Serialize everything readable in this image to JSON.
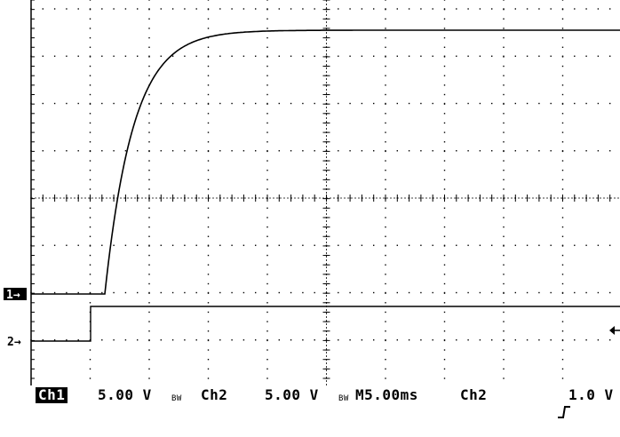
{
  "channels": [
    {
      "marker": "1→",
      "label": "Ch1",
      "scale": "5.00 V",
      "bandwidth": "BW"
    },
    {
      "marker": "2→",
      "label": "Ch2",
      "scale": "5.00 V",
      "bandwidth": "BW"
    }
  ],
  "timebase": "M5.00ms",
  "trigger": {
    "source": "Ch2",
    "slope_icon": "rising-edge-icon",
    "level": "1.0 V"
  },
  "colors": {
    "trace": "#000000",
    "grid": "#000000",
    "background": "#ffffff",
    "badge": "#000000"
  }
}
